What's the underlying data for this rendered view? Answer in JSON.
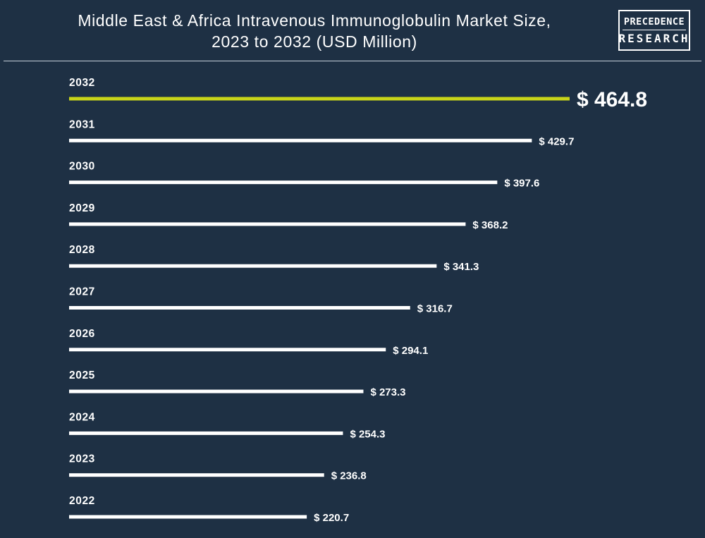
{
  "header": {
    "title_line1": "Middle East & Africa Intravenous Immunoglobulin Market Size,",
    "title_line2": "2023 to 2032 (USD Million)",
    "logo_line1": "PRECEDENCE",
    "logo_line2": "RESEARCH"
  },
  "colors": {
    "background": "#1e3044",
    "bar": "#ffffff",
    "highlight_bar": "#c8d419",
    "text": "#ffffff"
  },
  "chart_data": {
    "type": "bar",
    "orientation": "horizontal",
    "title": "Middle East & Africa Intravenous Immunoglobulin Market Size, 2023 to 2032 (USD Million)",
    "categories": [
      "2032",
      "2031",
      "2030",
      "2029",
      "2028",
      "2027",
      "2026",
      "2025",
      "2024",
      "2023",
      "2022"
    ],
    "values": [
      464.8,
      429.7,
      397.6,
      368.2,
      341.3,
      316.7,
      294.1,
      273.3,
      254.3,
      236.8,
      220.7
    ],
    "value_labels": [
      "$ 464.8",
      "$ 429.7",
      "$ 397.6",
      "$ 368.2",
      "$ 341.3",
      "$ 316.7",
      "$ 294.1",
      "$ 273.3",
      "$ 254.3",
      "$ 236.8",
      "$ 220.7"
    ],
    "highlight_category": "2032",
    "grid": false,
    "legend": "none"
  }
}
